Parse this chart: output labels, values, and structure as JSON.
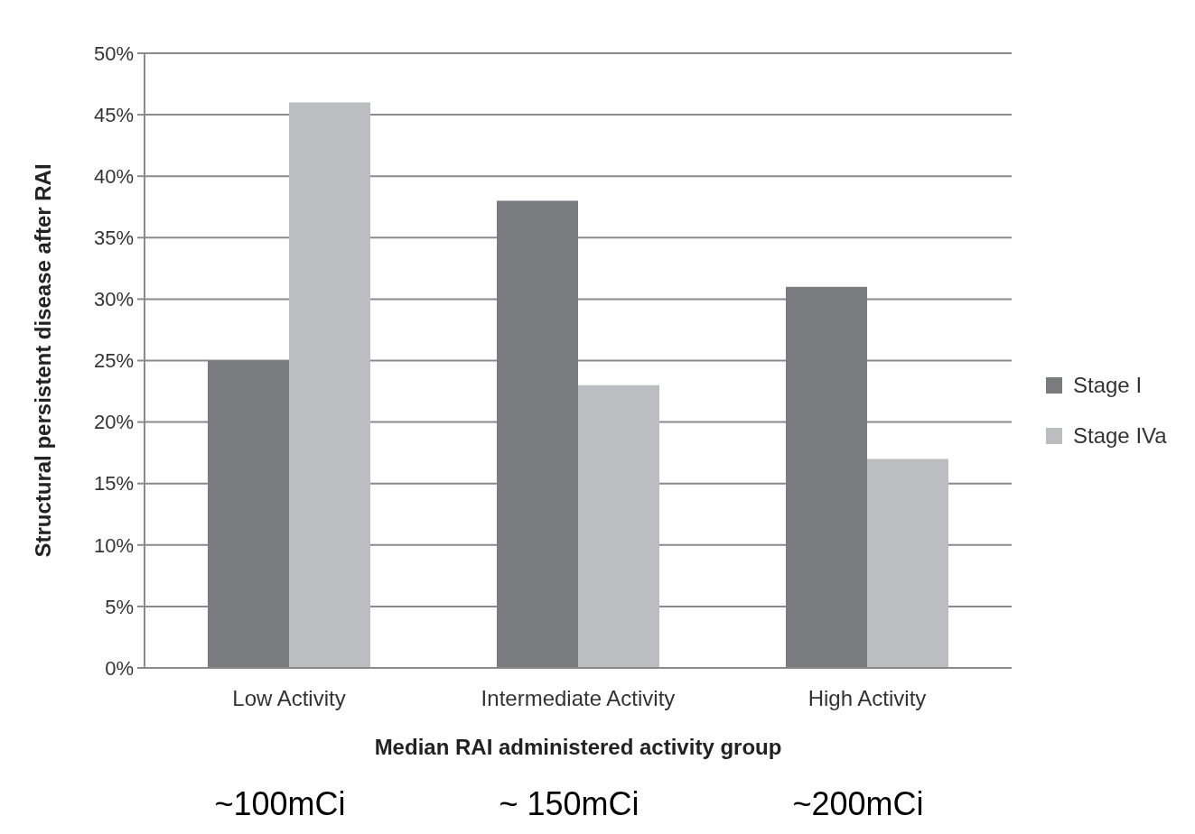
{
  "chart_data": {
    "type": "bar",
    "xlabel": "Median RAI administered activity group",
    "ylabel": "Structural persistent disease after RAI",
    "categories": [
      "Low Activity",
      "Intermediate Activity",
      "High Activity"
    ],
    "series": [
      {
        "name": "Stage I",
        "color": "#7a7b7f",
        "values": [
          25,
          38,
          31
        ]
      },
      {
        "name": "Stage IVa",
        "color": "#bcbdc1",
        "values": [
          46,
          23,
          17
        ]
      }
    ],
    "ylim": [
      0,
      50
    ],
    "yticks": [
      {
        "value": 0,
        "label": "0%"
      },
      {
        "value": 5,
        "label": "5%"
      },
      {
        "value": 10,
        "label": "10%"
      },
      {
        "value": 15,
        "label": "15%"
      },
      {
        "value": 20,
        "label": "20%"
      },
      {
        "value": 25,
        "label": "25%"
      },
      {
        "value": 30,
        "label": "30%"
      },
      {
        "value": 35,
        "label": "35%"
      },
      {
        "value": 40,
        "label": "40%"
      },
      {
        "value": 45,
        "label": "45%"
      },
      {
        "value": 50,
        "label": "50%"
      }
    ],
    "grid": "y",
    "legend": "right",
    "annotations": [
      "~100mCi",
      "~ 150mCi",
      "~200mCi"
    ]
  }
}
